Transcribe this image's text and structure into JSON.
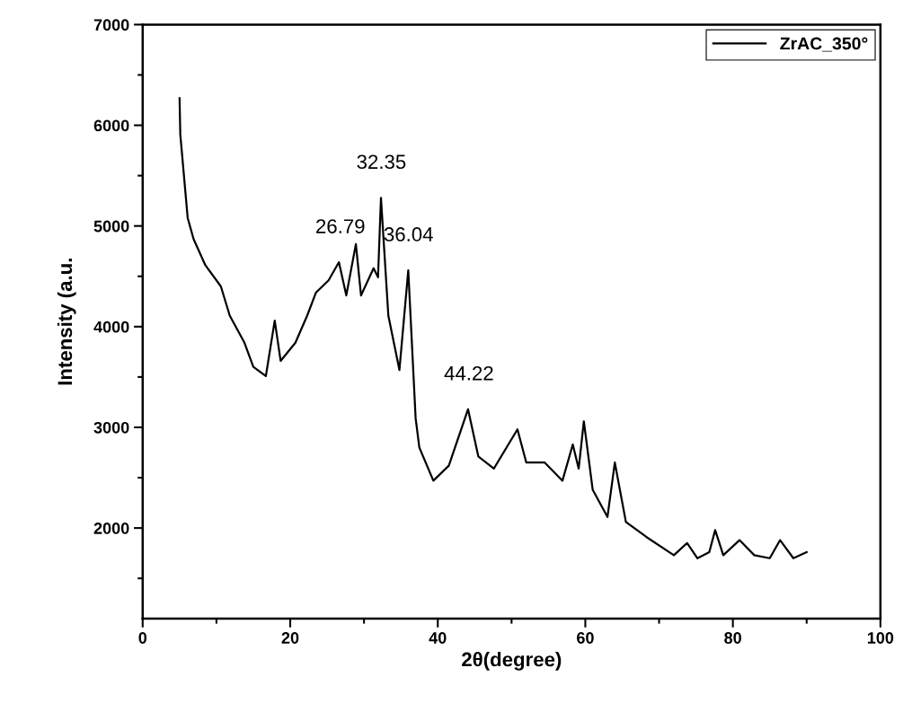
{
  "chart_data": {
    "type": "line",
    "xlabel": "2θ(degree)",
    "ylabel": "Intensity (a.u.",
    "xlim": [
      0,
      100
    ],
    "xticks": [
      0,
      20,
      40,
      60,
      80,
      100
    ],
    "ylim": [
      1100,
      7000
    ],
    "yticks": [
      2000,
      3000,
      4000,
      5000,
      6000,
      7000
    ],
    "legend": "top right",
    "grid": false,
    "series": [
      {
        "name": "ZrAC_350°",
        "color": "#000000",
        "x": [
          5.0,
          5.1,
          6.1,
          6.9,
          8.5,
          10.6,
          11.8,
          13.8,
          15.0,
          16.7,
          17.9,
          18.7,
          20.7,
          22.3,
          23.5,
          25.2,
          26.6,
          27.6,
          28.9,
          29.6,
          31.3,
          31.9,
          32.3,
          33.3,
          34.8,
          36.0,
          37.0,
          37.5,
          39.4,
          41.5,
          44.1,
          45.5,
          47.6,
          50.8,
          52.0,
          54.5,
          56.9,
          58.3,
          59.1,
          59.8,
          61.0,
          63.0,
          64.0,
          65.5,
          68.3,
          72.0,
          73.8,
          75.2,
          76.8,
          77.6,
          78.7,
          80.9,
          82.9,
          85.0,
          86.4,
          88.2,
          90.0
        ],
        "values": [
          6270,
          5910,
          5080,
          4870,
          4610,
          4400,
          4110,
          3840,
          3600,
          3510,
          4060,
          3660,
          3840,
          4110,
          4340,
          4460,
          4640,
          4310,
          4820,
          4310,
          4580,
          4490,
          5280,
          4110,
          3570,
          4560,
          3090,
          2800,
          2470,
          2620,
          3180,
          2710,
          2590,
          2980,
          2650,
          2650,
          2470,
          2830,
          2590,
          3060,
          2380,
          2110,
          2650,
          2060,
          1910,
          1730,
          1850,
          1700,
          1760,
          1980,
          1730,
          1880,
          1730,
          1700,
          1880,
          1700,
          1760
        ]
      }
    ],
    "annotations": [
      {
        "text": "26.79",
        "x": 26.79,
        "y": 4640
      },
      {
        "text": "32.35",
        "x": 32.35,
        "y": 5280
      },
      {
        "text": "36.04",
        "x": 36.04,
        "y": 4560
      },
      {
        "text": "44.22",
        "x": 44.22,
        "y": 3180
      }
    ]
  }
}
